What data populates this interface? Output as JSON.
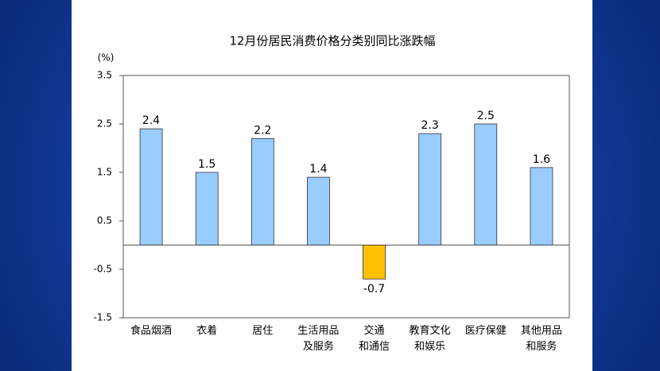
{
  "chart_data": {
    "type": "bar",
    "title": "12月份居民消费价格分类别同比涨跌幅",
    "y_unit": "(%)",
    "categories": [
      "食品烟酒",
      "衣着",
      "居住",
      "生活用品\n及服务",
      "交通\n和通信",
      "教育文化\n和娱乐",
      "医疗保健",
      "其他用品\n和服务"
    ],
    "values": [
      2.4,
      1.5,
      2.2,
      1.4,
      -0.7,
      2.3,
      2.5,
      1.6
    ],
    "colors": [
      "#99ccff",
      "#99ccff",
      "#99ccff",
      "#99ccff",
      "#ffc000",
      "#99ccff",
      "#99ccff",
      "#99ccff"
    ],
    "ylim": [
      -1.5,
      3.5
    ],
    "yticks": [
      -1.5,
      -0.5,
      0.5,
      1.5,
      2.5,
      3.5
    ],
    "grid": false
  }
}
